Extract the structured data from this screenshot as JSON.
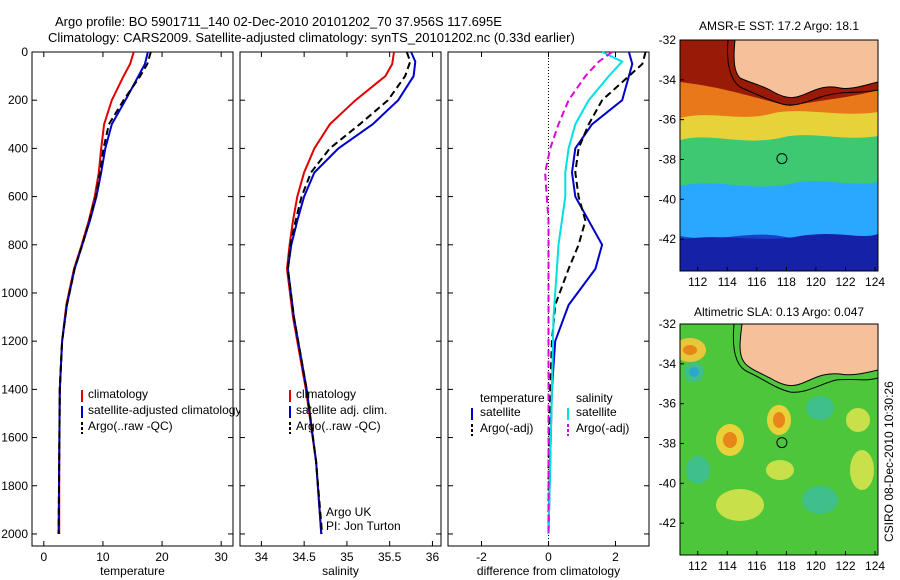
{
  "header": {
    "line1": "Argo profile: BO 5901711_140 02-Dec-2010 20101202_70 37.956S 117.695E",
    "line2": "Climatology: CARS2009. Satellite-adjusted climatology: synTS_20101202.nc (0.33d earlier)"
  },
  "side_label": "CSIRO 08-Dec-2010 10:30:26",
  "chart_data": [
    {
      "type": "line",
      "panel": "temperature",
      "xlabel": "temperature",
      "ylabel": "",
      "xlim": [
        -2,
        32
      ],
      "ylim": [
        2050,
        0
      ],
      "xticks": [
        "0",
        "10",
        "20",
        "30"
      ],
      "xtick_values": [
        0,
        10,
        20,
        30
      ],
      "yticks": [
        "0",
        "200",
        "400",
        "600",
        "800",
        "1000",
        "1200",
        "1400",
        "1600",
        "1800",
        "2000"
      ],
      "ytick_values": [
        0,
        200,
        400,
        600,
        800,
        1000,
        1200,
        1400,
        1600,
        1800,
        2000
      ],
      "legend": [
        "climatology",
        "satellite-adjusted climatology",
        "Argo(..raw -QC)"
      ],
      "legend_placement": "lower-right",
      "series": [
        {
          "name": "climatology",
          "color": "#e00000",
          "dash": "solid",
          "x": [
            15.2,
            14.6,
            13.5,
            11.5,
            10.2,
            9.7,
            9.3,
            8.6,
            7.6,
            6.4,
            5.1,
            3.8,
            3.1,
            2.7,
            2.6,
            2.6
          ],
          "y": [
            0,
            50,
            100,
            200,
            300,
            400,
            500,
            600,
            700,
            800,
            900,
            1050,
            1200,
            1400,
            1700,
            2000
          ]
        },
        {
          "name": "satellite-adjusted climatology",
          "color": "#0000cc",
          "dash": "solid",
          "x": [
            17.6,
            17.1,
            16.0,
            13.8,
            11.5,
            10.4,
            9.7,
            8.9,
            7.8,
            6.5,
            5.2,
            3.9,
            3.1,
            2.7,
            2.6,
            2.5
          ],
          "y": [
            0,
            50,
            100,
            200,
            300,
            400,
            500,
            600,
            700,
            800,
            900,
            1050,
            1200,
            1400,
            1700,
            2000
          ]
        },
        {
          "name": "Argo(..raw -QC)",
          "color": "#000000",
          "dash": "dashed",
          "x": [
            18.1,
            17.5,
            16.3,
            13.5,
            11.0,
            10.1,
            9.5,
            8.8,
            7.7,
            6.5,
            5.2,
            3.9,
            3.1,
            2.7,
            2.6,
            2.5
          ],
          "y": [
            0,
            50,
            100,
            200,
            300,
            400,
            500,
            600,
            700,
            800,
            900,
            1050,
            1200,
            1400,
            1700,
            2000
          ]
        }
      ]
    },
    {
      "type": "line",
      "panel": "salinity",
      "xlabel": "salinity",
      "xlim": [
        33.75,
        36.1
      ],
      "ylim": [
        2050,
        0
      ],
      "xticks": [
        "34",
        "34.5",
        "35",
        "35.5",
        "36"
      ],
      "xtick_values": [
        34,
        34.5,
        35,
        35.5,
        36
      ],
      "legend": [
        "climatology",
        "satellite adj. clim.",
        "Argo(..raw -QC)"
      ],
      "legend_placement": "lower-right",
      "annotation": [
        "Argo UK",
        "PI: Jon Turton"
      ],
      "series": [
        {
          "name": "climatology",
          "color": "#e00000",
          "dash": "solid",
          "x": [
            35.55,
            35.53,
            35.45,
            35.1,
            34.8,
            34.62,
            34.5,
            34.42,
            34.37,
            34.33,
            34.3,
            34.37,
            34.52,
            34.64,
            34.7
          ],
          "y": [
            0,
            50,
            100,
            200,
            300,
            400,
            500,
            600,
            700,
            800,
            900,
            1100,
            1400,
            1700,
            2000
          ]
        },
        {
          "name": "satellite adj. clim.",
          "color": "#0000cc",
          "dash": "solid",
          "x": [
            35.75,
            35.8,
            35.78,
            35.6,
            35.3,
            34.9,
            34.62,
            34.5,
            34.42,
            34.35,
            34.31,
            34.38,
            34.53,
            34.64,
            34.7
          ],
          "y": [
            0,
            40,
            100,
            200,
            300,
            400,
            500,
            600,
            700,
            800,
            900,
            1100,
            1400,
            1700,
            2000
          ]
        },
        {
          "name": "Argo(..raw -QC)",
          "color": "#000000",
          "dash": "dashed",
          "x": [
            35.7,
            35.74,
            35.68,
            35.48,
            35.15,
            34.8,
            34.58,
            34.47,
            34.4,
            34.34,
            34.31,
            34.38,
            34.53,
            34.64,
            34.71
          ],
          "y": [
            0,
            40,
            100,
            200,
            300,
            400,
            500,
            600,
            700,
            800,
            900,
            1100,
            1400,
            1700,
            2000
          ]
        }
      ]
    },
    {
      "type": "line",
      "panel": "difference",
      "xlabel": "difference from climatology",
      "xlim": [
        -3,
        3
      ],
      "ylim": [
        2050,
        0
      ],
      "xticks": [
        "-2",
        "0",
        "2"
      ],
      "xtick_values": [
        -2,
        0,
        2
      ],
      "legend_groups": [
        {
          "title": "temperature",
          "items": [
            "satellite",
            "Argo(-adj)"
          ]
        },
        {
          "title": "salinity",
          "items": [
            "satellite",
            "Argo(-adj)"
          ]
        }
      ],
      "legend_placement": "lower-center",
      "series": [
        {
          "name": "satellite",
          "group": "temperature",
          "color": "#0000cc",
          "dash": "solid",
          "x": [
            2.4,
            2.5,
            2.4,
            2.2,
            1.3,
            0.8,
            0.7,
            0.8,
            1.2,
            1.6,
            1.4,
            0.6,
            0.2,
            0.1,
            0.05,
            0.0
          ],
          "y": [
            0,
            50,
            100,
            200,
            300,
            400,
            500,
            600,
            700,
            800,
            900,
            1050,
            1200,
            1400,
            1700,
            2000
          ]
        },
        {
          "name": "Argo(-adj)",
          "group": "temperature",
          "color": "#000000",
          "dash": "dashed",
          "x": [
            2.9,
            2.8,
            2.4,
            1.6,
            1.2,
            0.9,
            0.8,
            0.9,
            1.1,
            0.9,
            0.6,
            0.2,
            0.1,
            0.05,
            0.0,
            0.0
          ],
          "y": [
            0,
            50,
            100,
            200,
            300,
            400,
            500,
            600,
            700,
            800,
            900,
            1050,
            1200,
            1400,
            1700,
            2000
          ]
        },
        {
          "name": "satellite",
          "group": "salinity",
          "color": "#00e0e0",
          "dash": "solid",
          "x": [
            1.6,
            2.2,
            1.8,
            1.2,
            0.8,
            0.6,
            0.5,
            0.5,
            0.4,
            0.3,
            0.25,
            0.15,
            0.1,
            0.05,
            0.0
          ],
          "y": [
            0,
            40,
            100,
            200,
            300,
            400,
            500,
            600,
            700,
            800,
            900,
            1100,
            1400,
            1700,
            2000
          ]
        },
        {
          "name": "Argo(-adj)",
          "group": "salinity",
          "color": "#e000e0",
          "dash": "dashed",
          "x": [
            1.9,
            1.5,
            1.1,
            0.6,
            0.3,
            0.05,
            -0.1,
            -0.05,
            0.0,
            0.0,
            0.0,
            0.0,
            0.0,
            0.0,
            0.0
          ],
          "y": [
            0,
            40,
            100,
            200,
            300,
            400,
            500,
            600,
            700,
            800,
            900,
            1100,
            1400,
            1700,
            2000
          ]
        }
      ]
    },
    {
      "type": "heatmap",
      "panel": "sst-map",
      "title": "AMSR-E SST: 17.2 Argo: 18.1",
      "xticks": [
        "112",
        "114",
        "116",
        "118",
        "120",
        "122",
        "124"
      ],
      "xtick_values": [
        112,
        114,
        116,
        118,
        120,
        122,
        124
      ],
      "yticks": [
        "-32",
        "-34",
        "-36",
        "-38",
        "-40",
        "-42"
      ],
      "ytick_values": [
        -32,
        -34,
        -36,
        -38,
        -40,
        -42
      ],
      "xlim": [
        110.8,
        124.2
      ],
      "ylim": [
        -43.6,
        -32
      ],
      "marker": {
        "lon": 117.695,
        "lat": -37.956
      },
      "colors": {
        "land": "#f5c09a"
      }
    },
    {
      "type": "heatmap",
      "panel": "sla-map",
      "title": "Altimetric SLA: 0.13 Argo: 0.047",
      "xticks": [
        "112",
        "114",
        "116",
        "118",
        "120",
        "122",
        "124"
      ],
      "xtick_values": [
        112,
        114,
        116,
        118,
        120,
        122,
        124
      ],
      "yticks": [
        "-32",
        "-34",
        "-36",
        "-38",
        "-40",
        "-42"
      ],
      "ytick_values": [
        -32,
        -34,
        -36,
        -38,
        -40,
        -42
      ],
      "xlim": [
        110.8,
        124.2
      ],
      "ylim": [
        -43.6,
        -32
      ],
      "marker": {
        "lon": 117.695,
        "lat": -37.956
      },
      "colors": {
        "land": "#f5c09a"
      }
    }
  ]
}
